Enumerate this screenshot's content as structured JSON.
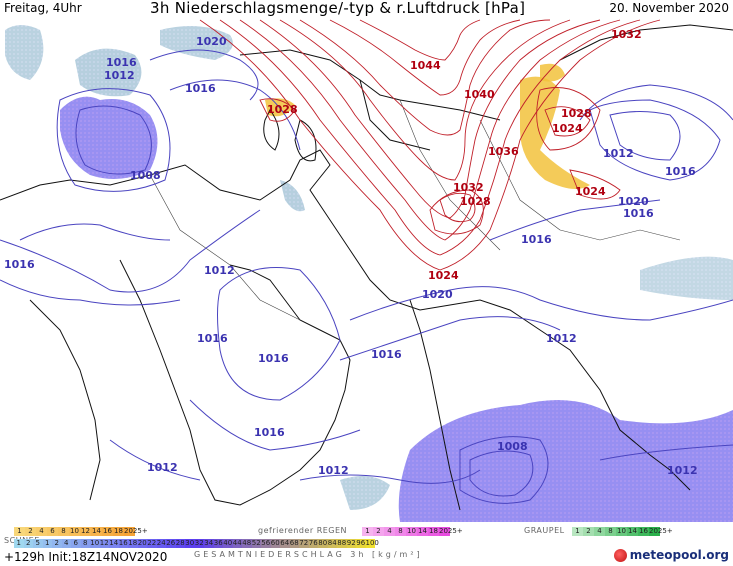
{
  "header": {
    "left": "Freitag, 4Uhr",
    "title": "3h Niederschlagsmenge/-typ & r.Luftdruck [hPa]",
    "date": "20. November 2020"
  },
  "footer": {
    "run": "+129h Init:18Z14NOV2020",
    "gesamt_label": "GESAMTNIEDERSCHLAG 3h [kg/m²]",
    "brand": "meteopool.org"
  },
  "legend": {
    "schnee_label": "SCHNEE",
    "regen_label": "gefrierender REGEN",
    "graupel_label": "GRAUPEL",
    "schnee_values": [
      "1",
      "2",
      "4",
      "6",
      "8",
      "10",
      "12",
      "14",
      "16",
      "18",
      "2025+"
    ],
    "regen_values": [
      "1",
      "2",
      "4",
      "8",
      "10",
      "14",
      "18",
      "2025+"
    ],
    "graupel_values": [
      "1",
      "2",
      "4",
      "8",
      "10",
      "14",
      "16",
      "2025+"
    ],
    "total_values": [
      "1",
      "2",
      "5",
      "1",
      "2",
      "4",
      "6",
      "8",
      "10",
      "12",
      "14",
      "16",
      "18",
      "20",
      "22",
      "24",
      "26",
      "28",
      "30",
      "32",
      "34",
      "36",
      "40",
      "44",
      "48",
      "52",
      "56",
      "60",
      "64",
      "68",
      "72",
      "76",
      "80",
      "84",
      "88",
      "92",
      "96",
      "100"
    ],
    "colors": {
      "schnee": "#f6a437",
      "regen": "#e84ce0",
      "graupel": "#29b04a",
      "total_start": "#a0d8ef",
      "total_mid": "#5a3cf0",
      "total_end": "#f0e030"
    }
  },
  "isobars_blue": [
    {
      "label": "1020",
      "id": "b1020a"
    },
    {
      "label": "1016",
      "id": "b1016a"
    },
    {
      "label": "1012",
      "id": "b1012a"
    },
    {
      "label": "1016",
      "id": "b1016b"
    },
    {
      "label": "1008",
      "id": "b1008a"
    },
    {
      "label": "1016",
      "id": "b1016c"
    },
    {
      "label": "1012",
      "id": "b1012b"
    },
    {
      "label": "1016",
      "id": "b1016d"
    },
    {
      "label": "1016",
      "id": "b1016e"
    },
    {
      "label": "1016",
      "id": "b1016f"
    },
    {
      "label": "1016",
      "id": "b1016g"
    },
    {
      "label": "1012",
      "id": "b1012c"
    },
    {
      "label": "1012",
      "id": "b1012d"
    },
    {
      "label": "1020",
      "id": "b1020b"
    },
    {
      "label": "1016",
      "id": "b1016h"
    },
    {
      "label": "1012",
      "id": "b1012e"
    },
    {
      "label": "1012",
      "id": "b1012f"
    },
    {
      "label": "1016",
      "id": "b1016i"
    },
    {
      "label": "1020",
      "id": "b1020c"
    },
    {
      "label": "1016",
      "id": "b1016j"
    },
    {
      "label": "1008",
      "id": "b1008b"
    },
    {
      "label": "1012",
      "id": "b1012g"
    }
  ],
  "isobars_red": [
    {
      "label": "1028",
      "id": "r1028a"
    },
    {
      "label": "1044",
      "id": "r1044"
    },
    {
      "label": "1040",
      "id": "r1040"
    },
    {
      "label": "1036",
      "id": "r1036"
    },
    {
      "label": "1032",
      "id": "r1032a"
    },
    {
      "label": "1028",
      "id": "r1028b"
    },
    {
      "label": "1024",
      "id": "r1024a"
    },
    {
      "label": "1028",
      "id": "r1028c"
    },
    {
      "label": "1024",
      "id": "r1024b"
    },
    {
      "label": "1024",
      "id": "r1024c"
    },
    {
      "label": "1032",
      "id": "r1032b"
    }
  ]
}
